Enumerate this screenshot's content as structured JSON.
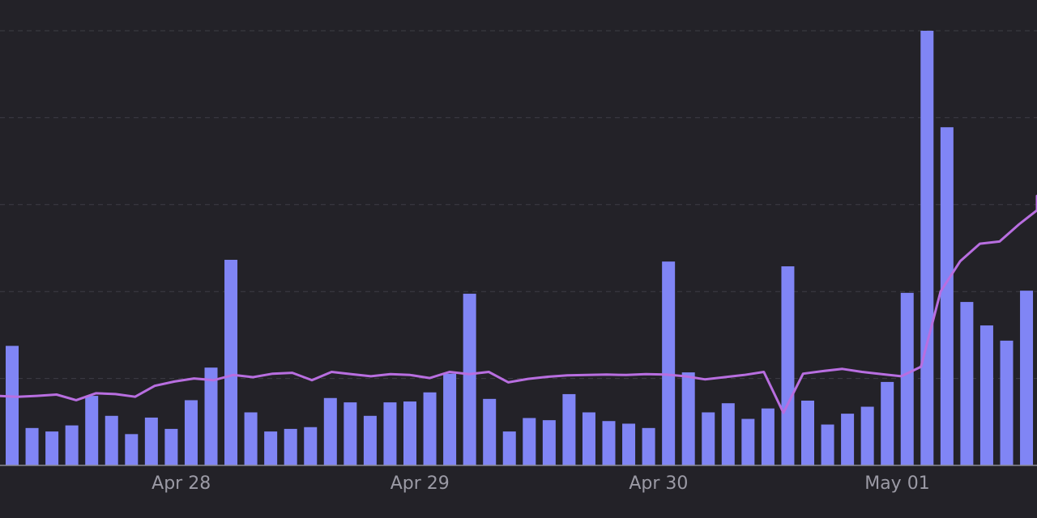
{
  "chart_data": {
    "type": "bar",
    "title": "",
    "xlabel": "",
    "ylabel": "",
    "ylim": [
      0,
      100
    ],
    "grid": true,
    "x_tick_labels": [
      {
        "label": "Apr 28",
        "index": 8.5
      },
      {
        "label": "Apr 29",
        "index": 20.5
      },
      {
        "label": "Apr 30",
        "index": 32.5
      },
      {
        "label": "May 01",
        "index": 44.5
      }
    ],
    "series": [
      {
        "name": "bars",
        "kind": "bar",
        "color": "#8085f5",
        "values": [
          27.5,
          8.6,
          7.8,
          9.2,
          16,
          11.4,
          7.2,
          11,
          8.4,
          15,
          22.5,
          47.3,
          12.2,
          7.8,
          8.4,
          8.8,
          15.5,
          14.5,
          11.4,
          14.5,
          14.7,
          16.8,
          21.1,
          39.5,
          15.3,
          7.8,
          10.9,
          10.4,
          16.4,
          12.2,
          10.2,
          9.6,
          8.6,
          46.9,
          21.4,
          12.2,
          14.3,
          10.7,
          13.1,
          45.8,
          14.9,
          9.4,
          11.9,
          13.5,
          19.2,
          39.7,
          100,
          77.8,
          37.6,
          32.2,
          28.7,
          40.2
        ]
      },
      {
        "name": "trend",
        "kind": "line",
        "color": "#b86ee0",
        "values": [
          16,
          15.8,
          16,
          16.3,
          15,
          16.6,
          16.4,
          15.8,
          18.3,
          19.3,
          20,
          19.6,
          20.8,
          20.3,
          21.1,
          21.3,
          19.6,
          21.5,
          21,
          20.5,
          21,
          20.8,
          20.1,
          21.5,
          21,
          21.5,
          19.1,
          19.9,
          20.4,
          20.7,
          20.8,
          20.9,
          20.8,
          21,
          20.9,
          20.5,
          19.8,
          20.3,
          20.8,
          21.5,
          12.1,
          21.1,
          21.7,
          22.2,
          21.5,
          21,
          20.5,
          22.7,
          40,
          47,
          51,
          51.5,
          55.5,
          58.7,
          62
        ]
      }
    ]
  }
}
